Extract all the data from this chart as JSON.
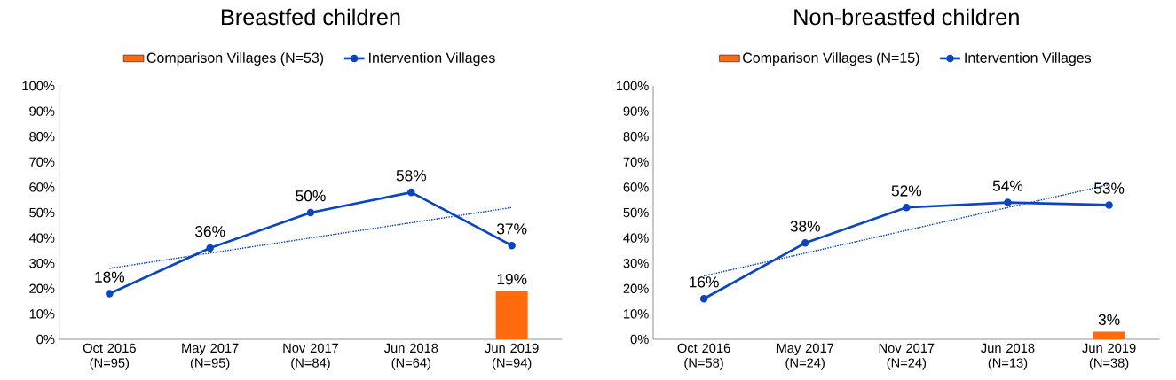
{
  "chart_data": [
    {
      "type": "line",
      "title": "Breastfed children",
      "categories": [
        "Oct 2016 (N=95)",
        "May 2017 (N=95)",
        "Nov 2017 (N=84)",
        "Jun 2018 (N=64)",
        "Jun 2019 (N=94)"
      ],
      "series": [
        {
          "name": "Comparison Villages (N=53)",
          "type": "bar",
          "color": "#ff6a0e",
          "values": [
            null,
            null,
            null,
            null,
            19
          ],
          "value_labels": [
            null,
            null,
            null,
            null,
            "19%"
          ]
        },
        {
          "name": "Intervention Villages",
          "color": "#0b45c0",
          "marker": "circle",
          "line_style": "solid",
          "values": [
            18,
            36,
            50,
            58,
            37
          ],
          "value_labels": [
            "18%",
            "36%",
            "50%",
            "58%",
            "37%"
          ]
        },
        {
          "color": "#0b45c0",
          "marker": "none",
          "line_style": "dotted",
          "values": [
            28,
            34,
            40,
            46,
            52
          ]
        }
      ],
      "ylim": [
        0,
        100
      ],
      "yticks": [
        {
          "value": 0,
          "label": "0%"
        },
        {
          "value": 10,
          "label": "10%"
        },
        {
          "value": 20,
          "label": "20%"
        },
        {
          "value": 30,
          "label": "30%"
        },
        {
          "value": 40,
          "label": "40%"
        },
        {
          "value": 50,
          "label": "50%"
        },
        {
          "value": 60,
          "label": "60%"
        },
        {
          "value": 70,
          "label": "70%"
        },
        {
          "value": 80,
          "label": "80%"
        },
        {
          "value": 90,
          "label": "90%"
        },
        {
          "value": 100,
          "label": "100%"
        }
      ],
      "legend": "top"
    },
    {
      "type": "line",
      "title": "Non-breastfed children",
      "categories": [
        "Oct 2016 (N=58)",
        "May 2017 (N=24)",
        "Nov 2017 (N=24)",
        "Jun 2018 (N=13)",
        "Jun 2019 (N=38)"
      ],
      "series": [
        {
          "name": "Comparison Villages (N=15)",
          "type": "bar",
          "color": "#ff6a0e",
          "values": [
            null,
            null,
            null,
            null,
            3
          ],
          "value_labels": [
            null,
            null,
            null,
            null,
            "3%"
          ]
        },
        {
          "name": "Intervention Villages",
          "color": "#0b45c0",
          "marker": "circle",
          "line_style": "solid",
          "values": [
            16,
            38,
            52,
            54,
            53
          ],
          "value_labels": [
            "16%",
            "38%",
            "52%",
            "54%",
            "53%"
          ]
        },
        {
          "color": "#0b45c0",
          "marker": "none",
          "line_style": "dotted",
          "values": [
            25,
            34,
            43,
            52,
            61
          ]
        }
      ],
      "ylim": [
        0,
        100
      ],
      "yticks": [
        {
          "value": 0,
          "label": "0%"
        },
        {
          "value": 10,
          "label": "10%"
        },
        {
          "value": 20,
          "label": "20%"
        },
        {
          "value": 30,
          "label": "30%"
        },
        {
          "value": 40,
          "label": "40%"
        },
        {
          "value": 50,
          "label": "50%"
        },
        {
          "value": 60,
          "label": "60%"
        },
        {
          "value": 70,
          "label": "70%"
        },
        {
          "value": 80,
          "label": "80%"
        },
        {
          "value": 90,
          "label": "90%"
        },
        {
          "value": 100,
          "label": "100%"
        }
      ],
      "legend": "top"
    }
  ]
}
